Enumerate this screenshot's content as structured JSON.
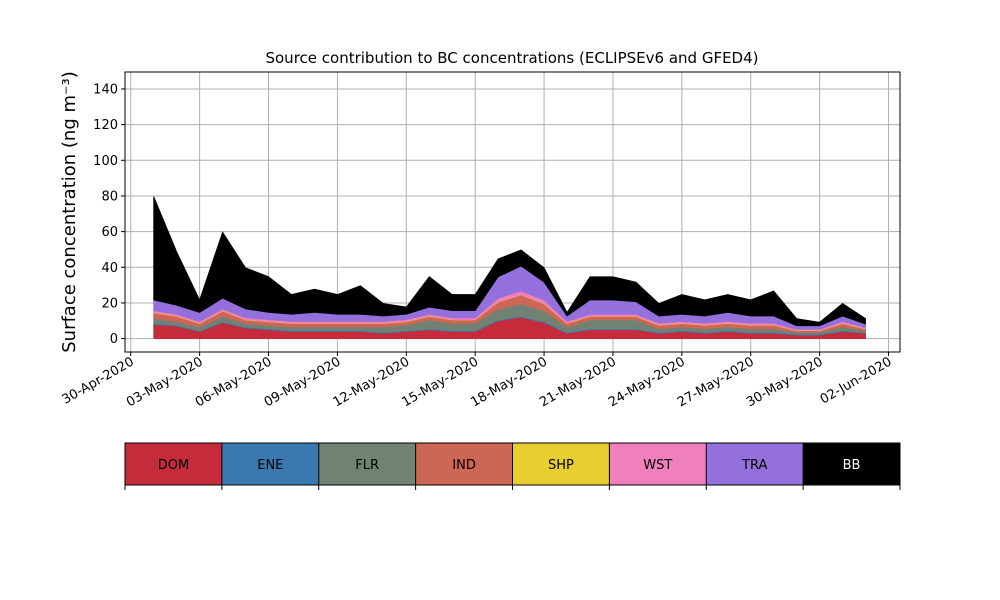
{
  "chart_data": {
    "type": "stacked_area",
    "title": "Source contribution to BC concentrations (ECLIPSEv6 and GFED4)",
    "y_label": "Surface concentration (ng m⁻³)",
    "x": [
      "2020-05-01",
      "2020-05-02",
      "2020-05-03",
      "2020-05-04",
      "2020-05-05",
      "2020-05-06",
      "2020-05-07",
      "2020-05-08",
      "2020-05-09",
      "2020-05-10",
      "2020-05-11",
      "2020-05-12",
      "2020-05-13",
      "2020-05-14",
      "2020-05-15",
      "2020-05-16",
      "2020-05-17",
      "2020-05-18",
      "2020-05-19",
      "2020-05-20",
      "2020-05-21",
      "2020-05-22",
      "2020-05-23",
      "2020-05-24",
      "2020-05-25",
      "2020-05-26",
      "2020-05-27",
      "2020-05-28",
      "2020-05-29",
      "2020-05-30",
      "2020-05-31",
      "2020-06-01"
    ],
    "series": [
      {
        "name": "DOM",
        "color": "#c62b3b",
        "values": [
          8,
          7,
          4,
          9,
          6,
          5,
          4,
          4,
          4,
          4,
          3,
          4,
          5,
          4,
          4,
          10,
          12,
          9,
          3,
          5,
          5,
          5,
          3,
          4,
          3,
          4,
          3,
          3,
          2,
          2,
          4,
          3
        ]
      },
      {
        "name": "ENE",
        "color": "#3a78b0",
        "values": [
          0.5,
          0.5,
          0.5,
          0.5,
          0.5,
          0.5,
          0.5,
          0.5,
          0.5,
          0.5,
          0.5,
          0.5,
          0.5,
          0.5,
          0.5,
          0.5,
          0.5,
          0.5,
          0.5,
          0.5,
          0.5,
          0.5,
          0.5,
          0.5,
          0.5,
          0.5,
          0.5,
          0.5,
          0.5,
          0.5,
          0.5,
          0.5
        ]
      },
      {
        "name": "FLR",
        "color": "#6f8273",
        "values": [
          3,
          2,
          2,
          3,
          2,
          2,
          2,
          2,
          2,
          2,
          3,
          3,
          5,
          4,
          4,
          6,
          7,
          6,
          3,
          5,
          5,
          5,
          2,
          2,
          2,
          2,
          2,
          2,
          1,
          1,
          2,
          1
        ]
      },
      {
        "name": "IND",
        "color": "#cd6655",
        "values": [
          3,
          3,
          2,
          3,
          2,
          2,
          2,
          2,
          2,
          2,
          2,
          2,
          2,
          2,
          2,
          4,
          5,
          4,
          2,
          2,
          2,
          2,
          2,
          2,
          2,
          2,
          2,
          2,
          1,
          1,
          2,
          1
        ]
      },
      {
        "name": "SHP",
        "color": "#e6cf2e",
        "values": [
          0.2,
          0.2,
          0.2,
          0.2,
          0.2,
          0.2,
          0.2,
          0.2,
          0.2,
          0.2,
          0.2,
          0.2,
          0.2,
          0.2,
          0.2,
          0.2,
          0.2,
          0.2,
          0.2,
          0.2,
          0.2,
          0.2,
          0.2,
          0.2,
          0.2,
          0.2,
          0.2,
          0.2,
          0.2,
          0.2,
          0.2,
          0.2
        ]
      },
      {
        "name": "WST",
        "color": "#f07fbd",
        "values": [
          1,
          1,
          1,
          1,
          1,
          1,
          1,
          1,
          1,
          1,
          1,
          1,
          1,
          1,
          1,
          2,
          2,
          2,
          1,
          1,
          1,
          1,
          1,
          1,
          1,
          1,
          1,
          1,
          0.5,
          0.5,
          1,
          0.5
        ]
      },
      {
        "name": "TRA",
        "color": "#9370db",
        "values": [
          6,
          5,
          5,
          6,
          5,
          4,
          4,
          5,
          4,
          4,
          3,
          3,
          4,
          4,
          4,
          12,
          14,
          10,
          3,
          8,
          8,
          7,
          4,
          4,
          4,
          5,
          4,
          4,
          2,
          2,
          3,
          2
        ]
      },
      {
        "name": "BB",
        "color": "#000000",
        "values": [
          58,
          30,
          7,
          37,
          23,
          20,
          11,
          13,
          11,
          16,
          7,
          4,
          17,
          9,
          9,
          10,
          9,
          8,
          2,
          13,
          13,
          11,
          7,
          11,
          9,
          10,
          9,
          14,
          4,
          2,
          7,
          3
        ]
      }
    ],
    "xlim": [
      "2020-04-29T18:00",
      "2020-06-02T12:00"
    ],
    "xticks": [
      {
        "value": "2020-04-30",
        "label": "30-Apr-2020"
      },
      {
        "value": "2020-05-03",
        "label": "03-May-2020"
      },
      {
        "value": "2020-05-06",
        "label": "06-May-2020"
      },
      {
        "value": "2020-05-09",
        "label": "09-May-2020"
      },
      {
        "value": "2020-05-12",
        "label": "12-May-2020"
      },
      {
        "value": "2020-05-15",
        "label": "15-May-2020"
      },
      {
        "value": "2020-05-18",
        "label": "18-May-2020"
      },
      {
        "value": "2020-05-21",
        "label": "21-May-2020"
      },
      {
        "value": "2020-05-24",
        "label": "24-May-2020"
      },
      {
        "value": "2020-05-27",
        "label": "27-May-2020"
      },
      {
        "value": "2020-05-30",
        "label": "30-May-2020"
      },
      {
        "value": "2020-06-02",
        "label": "02-Jun-2020"
      }
    ],
    "ylim": [
      -7.5,
      149.5
    ],
    "yticks": [
      0,
      20,
      40,
      60,
      80,
      100,
      120,
      140
    ],
    "grid": true
  }
}
